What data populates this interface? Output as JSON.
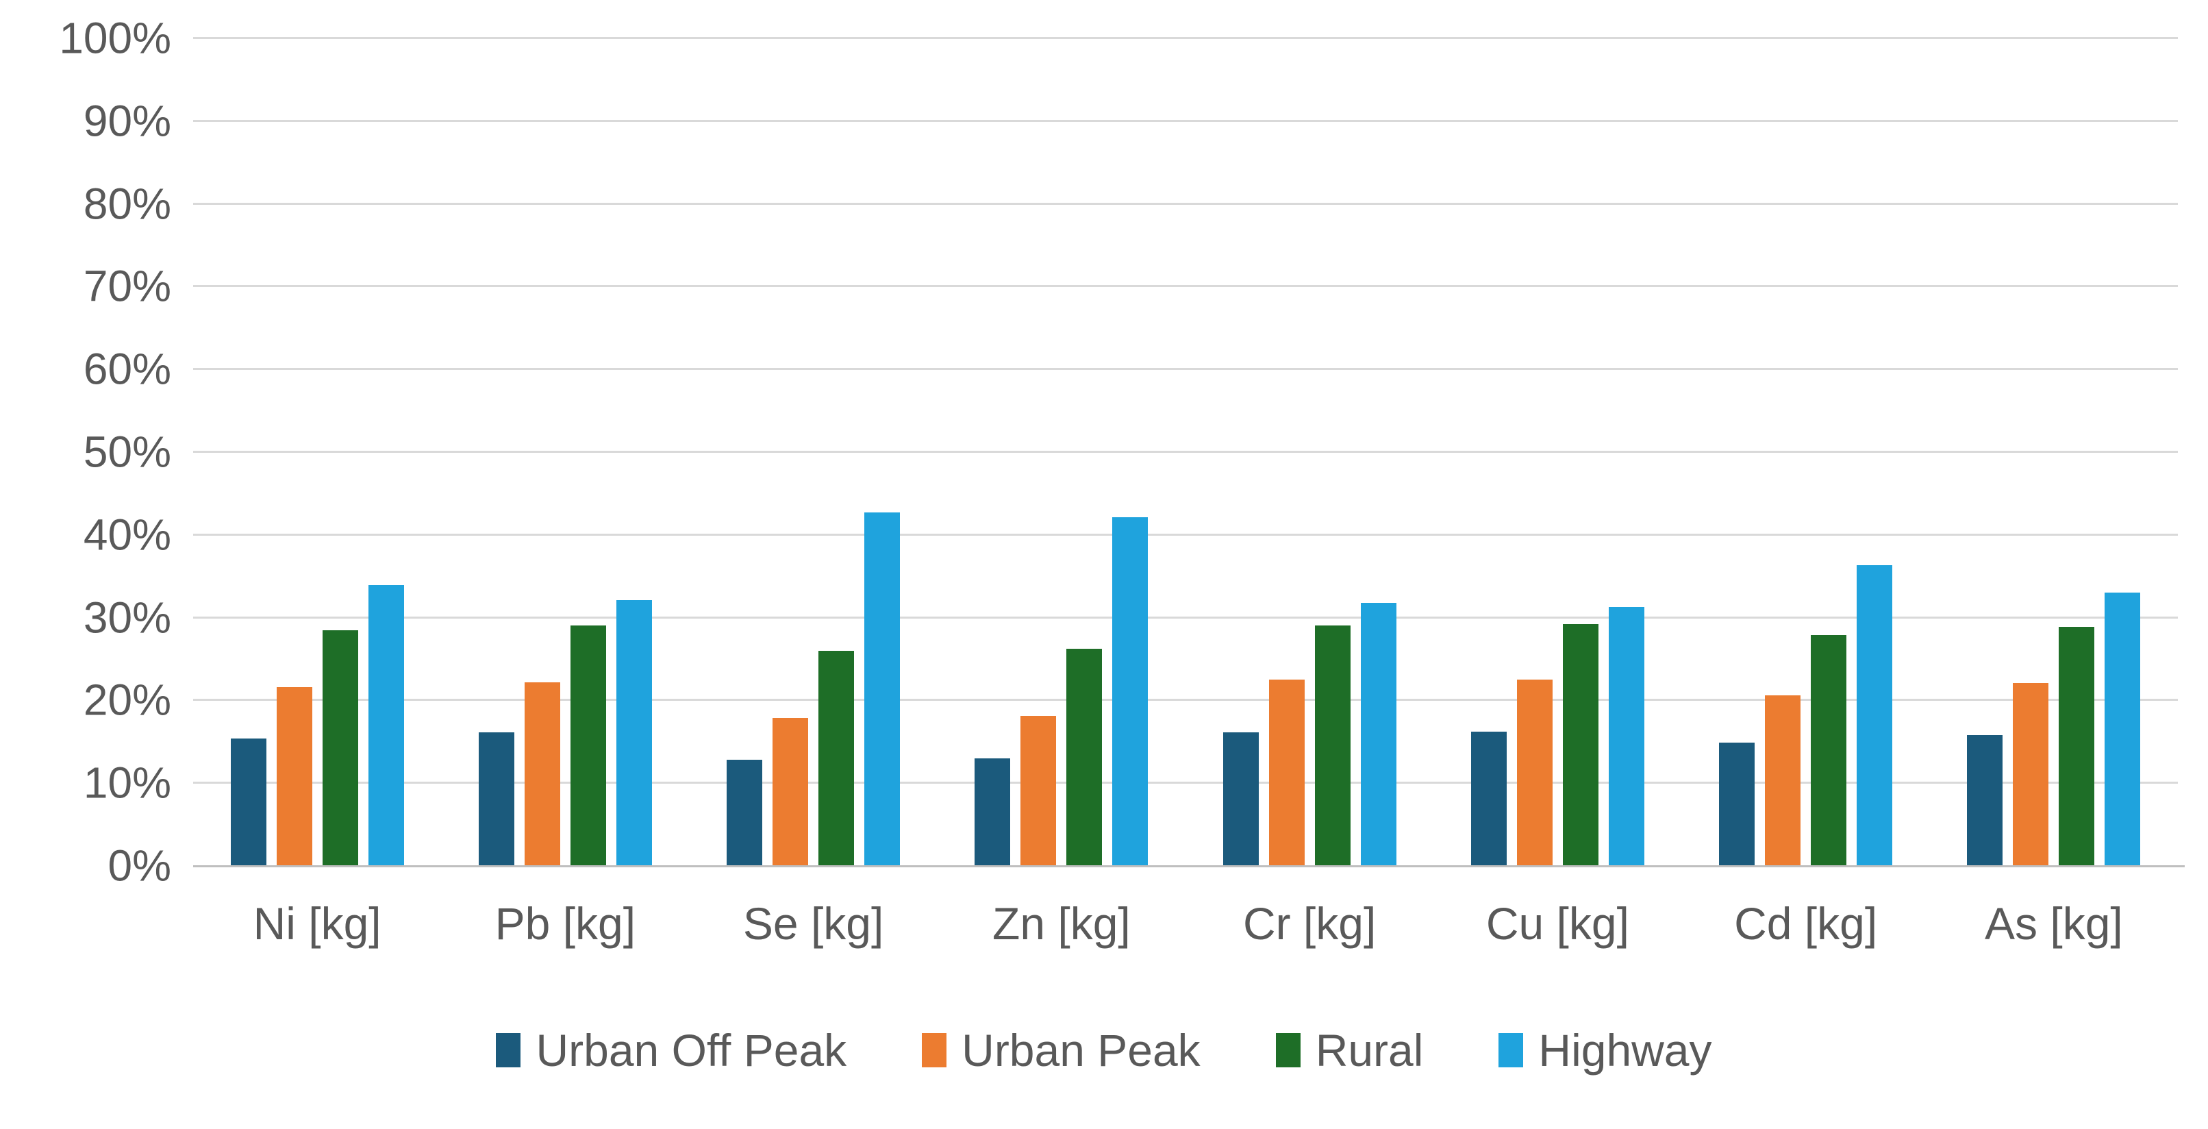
{
  "style": {
    "background": "#FFFFFF",
    "gridline_color": "#D9D9D9",
    "axis_line_color": "#BFBFBF",
    "text_color": "#595959"
  },
  "chart_data": {
    "type": "bar",
    "title": "",
    "xlabel": "",
    "ylabel": "",
    "grid": true,
    "legend_position": "bottom",
    "y_axis": {
      "min": 0,
      "max": 100,
      "step": 10,
      "tick_labels": [
        "0%",
        "10%",
        "20%",
        "30%",
        "40%",
        "50%",
        "60%",
        "70%",
        "80%",
        "90%",
        "100%"
      ]
    },
    "categories": [
      "Ni [kg]",
      "Pb [kg]",
      "Se [kg]",
      "Zn [kg]",
      "Cr [kg]",
      "Cu [kg]",
      "Cd [kg]",
      "As [kg]"
    ],
    "series": [
      {
        "name": "Urban Off Peak",
        "color": "#1B5A7C",
        "values": [
          15.5,
          16.2,
          12.9,
          13.1,
          16.2,
          16.3,
          15.0,
          15.9
        ]
      },
      {
        "name": "Urban Peak",
        "color": "#EC7C30",
        "values": [
          21.7,
          22.3,
          18.0,
          18.2,
          22.6,
          22.6,
          20.7,
          22.2
        ]
      },
      {
        "name": "Rural",
        "color": "#1E6E27",
        "values": [
          28.6,
          29.1,
          26.1,
          26.3,
          29.1,
          29.3,
          28.0,
          29.0
        ]
      },
      {
        "name": "Highway",
        "color": "#1FA3DD",
        "values": [
          34.0,
          32.2,
          42.8,
          42.2,
          31.9,
          31.4,
          36.4,
          33.1
        ]
      }
    ]
  }
}
